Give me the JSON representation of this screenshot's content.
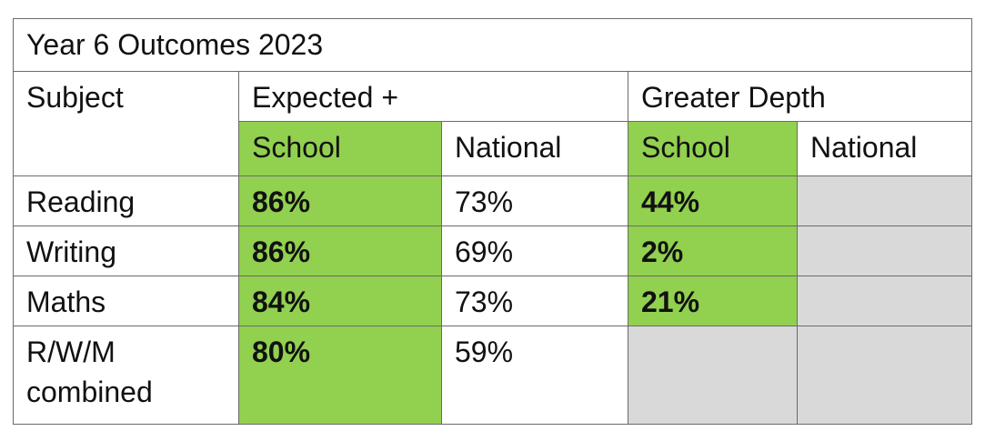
{
  "title": "Year 6 Outcomes 2023",
  "header": {
    "subject": "Subject",
    "expected": "Expected +",
    "greater_depth": "Greater Depth"
  },
  "subheaders": [
    "School",
    "National",
    "School",
    "National"
  ],
  "rows": [
    {
      "subject": "Reading",
      "expected_school": "86%",
      "expected_national": "73%",
      "greater_depth_school": "44%"
    },
    {
      "subject": "Writing",
      "expected_school": "86%",
      "expected_national": "69%",
      "greater_depth_school": "2%"
    },
    {
      "subject": "Maths",
      "expected_school": "84%",
      "expected_national": "73%",
      "greater_depth_school": "21%"
    },
    {
      "subject": "R/W/M combined",
      "expected_school": "80%",
      "expected_national": "59%"
    }
  ]
}
